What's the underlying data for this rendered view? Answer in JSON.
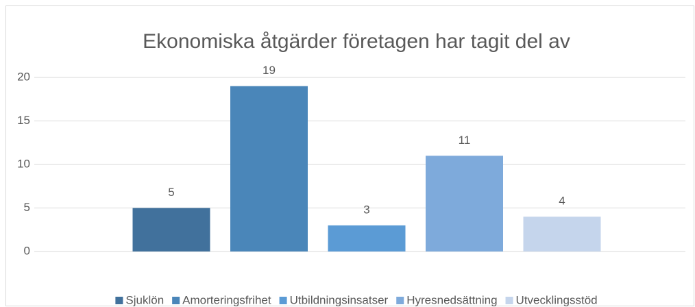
{
  "chart_data": {
    "type": "bar",
    "title": "Ekonomiska åtgärder företagen har tagit del av",
    "categories": [
      null
    ],
    "series": [
      {
        "name": "Sjuklön",
        "color": "#41719c",
        "values": [
          5
        ]
      },
      {
        "name": "Amorteringsfrihet",
        "color": "#4a86b9",
        "values": [
          19
        ]
      },
      {
        "name": "Utbildningsinsatser",
        "color": "#5b9bd5",
        "values": [
          3
        ]
      },
      {
        "name": "Hyresnedsättning",
        "color": "#7eaadb",
        "values": [
          11
        ]
      },
      {
        "name": "Utvecklingsstöd",
        "color": "#c5d5ec",
        "values": [
          4
        ]
      }
    ],
    "ylim": [
      0,
      20
    ],
    "yticks": [
      0,
      5,
      10,
      15,
      20
    ],
    "grid": true,
    "legend": "bottom"
  }
}
